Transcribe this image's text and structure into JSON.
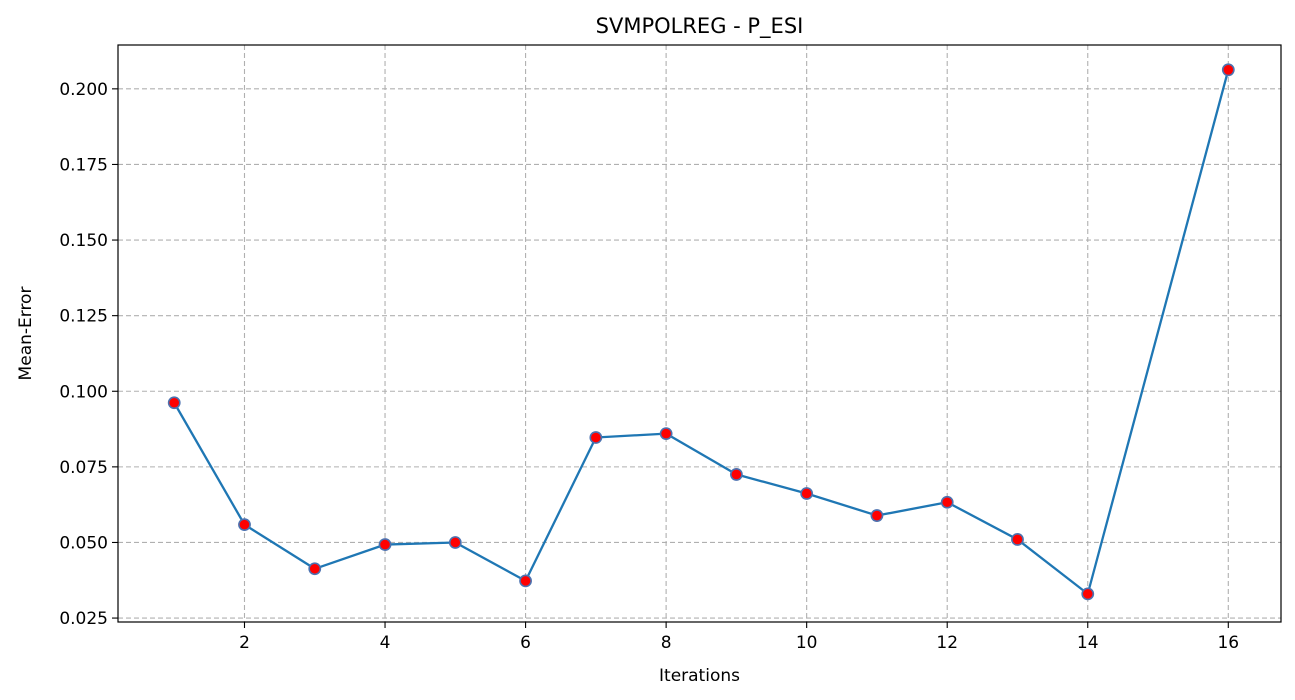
{
  "chart_data": {
    "type": "line",
    "title": "SVMPOLREG - P_ESI",
    "xlabel": "Iterations",
    "ylabel": "Mean-Error",
    "xlim": [
      0.2,
      16.75
    ],
    "ylim": [
      0.0237,
      0.2145
    ],
    "x_ticks": [
      2,
      4,
      6,
      8,
      10,
      12,
      14,
      16
    ],
    "x_tick_labels": [
      "2",
      "4",
      "6",
      "8",
      "10",
      "12",
      "14",
      "16"
    ],
    "y_ticks": [
      0.025,
      0.05,
      0.075,
      0.1,
      0.125,
      0.15,
      0.175,
      0.2
    ],
    "y_tick_labels": [
      "0.025",
      "0.050",
      "0.075",
      "0.100",
      "0.125",
      "0.150",
      "0.175",
      "0.200"
    ],
    "grid": true,
    "series": [
      {
        "x": [
          1,
          2,
          3,
          4,
          5,
          6,
          7,
          8,
          9,
          10,
          11,
          12,
          13,
          14,
          16
        ],
        "values": [
          0.0962,
          0.0559,
          0.0413,
          0.0493,
          0.05,
          0.0373,
          0.0847,
          0.086,
          0.0725,
          0.0662,
          0.0589,
          0.0633,
          0.051,
          0.033,
          0.2063
        ],
        "line_color": "#1f77b4",
        "marker_face_color": "#ff0000",
        "marker_edge_color": "#4c72b0"
      }
    ]
  }
}
